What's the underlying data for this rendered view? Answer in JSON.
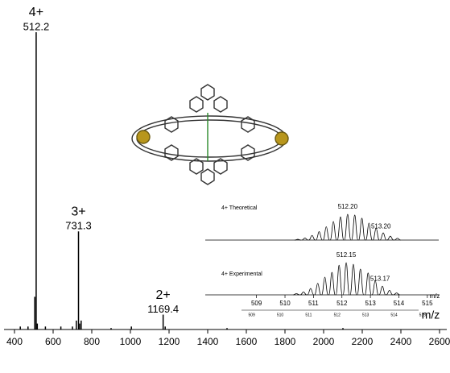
{
  "chart_data": [
    {
      "type": "stick",
      "xlabel": "m/z",
      "color": "#000000",
      "x": [
        430,
        470,
        505,
        512.2,
        518,
        560,
        640,
        700,
        720,
        731.3,
        737,
        745,
        900,
        1005,
        1169.4,
        1180,
        1500,
        2100
      ],
      "values": [
        1,
        1,
        11,
        100,
        2,
        1,
        1,
        1,
        3,
        33,
        2,
        3,
        0.5,
        1,
        5,
        1,
        0.5,
        0.5
      ],
      "xlim": [
        400,
        2600
      ],
      "xticks": [
        400,
        600,
        800,
        1000,
        1200,
        1400,
        1600,
        1800,
        2000,
        2200,
        2400,
        2600
      ],
      "peak_labels": [
        {
          "charge": "4+",
          "mz": "512.2"
        },
        {
          "charge": "3+",
          "mz": "731.3"
        },
        {
          "charge": "2+",
          "mz": "1169.4"
        }
      ]
    },
    {
      "type": "profile",
      "xlabel": "m/z",
      "color": "#000000",
      "xlim": [
        507.2,
        515.4
      ],
      "xticks": [
        509,
        510,
        511,
        512,
        513,
        514,
        515
      ],
      "series": [
        {
          "name": "4+ Theoretical",
          "x": [
            510.45,
            510.7,
            510.95,
            511.2,
            511.45,
            511.7,
            511.95,
            512.2,
            512.45,
            512.7,
            512.95,
            513.2,
            513.45,
            513.7,
            513.95
          ],
          "values": [
            3,
            8,
            18,
            33,
            52,
            72,
            90,
            100,
            97,
            85,
            66,
            46,
            28,
            15,
            7
          ],
          "peak_labels": [
            "512.20",
            "513.20"
          ]
        },
        {
          "name": "4+ Experimental",
          "x": [
            510.4,
            510.65,
            510.9,
            511.15,
            511.4,
            511.65,
            511.9,
            512.15,
            512.4,
            512.65,
            512.92,
            513.17,
            513.42,
            513.67,
            513.92
          ],
          "values": [
            4,
            9,
            20,
            36,
            55,
            70,
            92,
            100,
            95,
            80,
            68,
            44,
            27,
            14,
            6
          ],
          "peak_labels": [
            "512.15",
            "513.17"
          ]
        }
      ]
    }
  ]
}
